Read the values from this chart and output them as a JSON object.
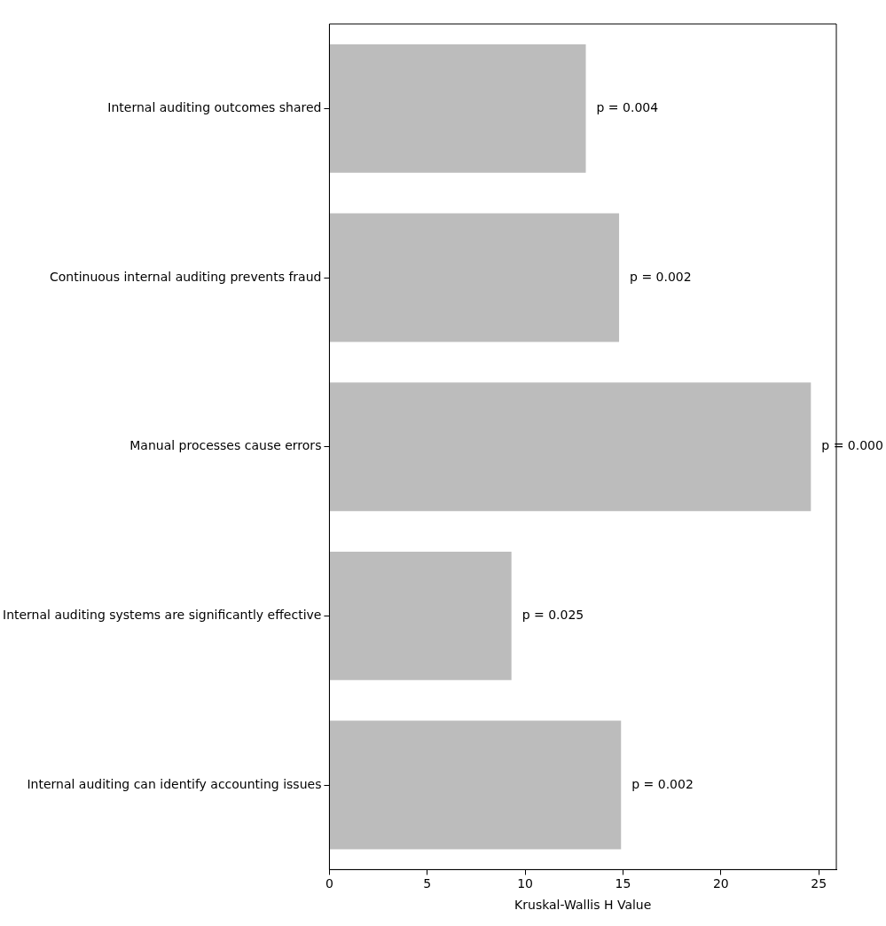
{
  "chart_data": {
    "type": "bar",
    "orientation": "horizontal",
    "xlabel": "Kruskal-Wallis H Value",
    "categories": [
      "Internal auditing outcomes shared",
      "Continuous internal auditing prevents fraud",
      "Manual processes cause errors",
      "Internal auditing systems are significantly effective",
      "Internal auditing can identify accounting issues"
    ],
    "values": [
      13.1,
      14.8,
      24.6,
      9.3,
      14.9
    ],
    "annotations": [
      {
        "text": "p = 0.004",
        "x": 13.1,
        "y": "Internal auditing outcomes shared"
      },
      {
        "text": "p = 0.002",
        "x": 14.8,
        "y": "Continuous internal auditing prevents fraud"
      },
      {
        "text": "p = 0.000",
        "x": 24.6,
        "y": "Manual processes cause errors"
      },
      {
        "text": "p = 0.025",
        "x": 9.3,
        "y": "Internal auditing systems are significantly effective"
      },
      {
        "text": "p = 0.002",
        "x": 14.9,
        "y": "Internal auditing can identify accounting issues"
      }
    ],
    "color": "#bcbcbc",
    "xlim": [
      0,
      25.9
    ],
    "xticks": [
      0,
      5,
      10,
      15,
      20,
      25
    ],
    "grid": false,
    "legend": false
  }
}
